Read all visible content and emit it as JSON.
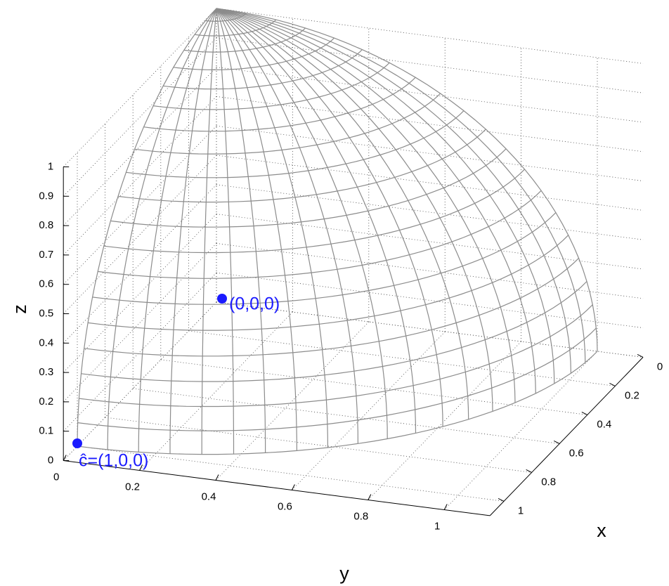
{
  "chart_data": {
    "type": "surface",
    "x_label": "x",
    "y_label": "y",
    "z_label": "z",
    "xlim": [
      0,
      1.1
    ],
    "ylim": [
      0,
      1.12
    ],
    "zlim": [
      0,
      1
    ],
    "xticks": [
      0,
      0.2,
      0.4,
      0.6,
      0.8,
      1
    ],
    "yticks": [
      0,
      0.2,
      0.4,
      0.6,
      0.8,
      1
    ],
    "zticks": [
      0,
      0.1,
      0.2,
      0.3,
      0.4,
      0.5,
      0.6,
      0.7,
      0.8,
      0.9,
      1
    ],
    "grid": true,
    "mesh_color": "#8c8c8c",
    "point_color": "#1a1aff",
    "annotations": [
      {
        "text": "(0,0,0)",
        "x": 0,
        "y": 0,
        "z": 0
      },
      {
        "text": "ĉ=(1,0,0)",
        "x": 1,
        "y": 0,
        "z": 0
      }
    ]
  }
}
